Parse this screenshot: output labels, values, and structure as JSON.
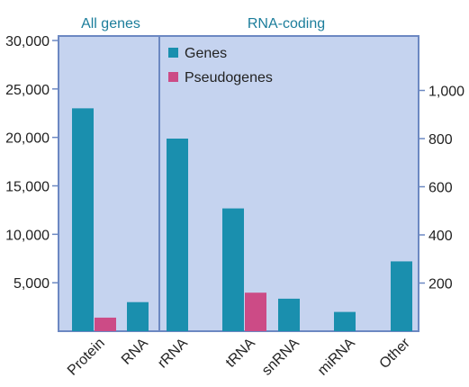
{
  "chart_data": {
    "type": "bar",
    "panel_labels": [
      "All genes",
      "RNA-coding"
    ],
    "left_axis": {
      "ticks": [
        5000,
        10000,
        15000,
        20000,
        25000,
        30000
      ],
      "tick_labels": [
        "5,000",
        "10,000",
        "15,000",
        "20,000",
        "25,000",
        "30,000"
      ],
      "ylim": [
        0,
        30000
      ]
    },
    "right_axis": {
      "ticks": [
        200,
        400,
        600,
        800,
        1000
      ],
      "tick_labels": [
        "200",
        "400",
        "600",
        "800",
        "1,000"
      ],
      "ylim": [
        0,
        1200
      ]
    },
    "legend": {
      "placement": "top-left of RNA-coding panel",
      "entries": [
        "Genes",
        "Pseudogenes"
      ]
    },
    "colors": {
      "Genes": "#1a8fae",
      "Pseudogenes": "#cc4b86",
      "panel_bg": "#c5d3ef",
      "panel_border": "#6c88c2",
      "label_color": "#1b7d9b"
    },
    "categories": [
      "Protein",
      "RNA",
      "rRNA",
      "tRNA",
      "snRNA",
      "miRNA",
      "Other"
    ],
    "series": [
      {
        "name": "Genes",
        "values": [
          23000,
          3000,
          800,
          510,
          135,
          80,
          290
        ]
      },
      {
        "name": "Pseudogenes",
        "values": [
          1400,
          null,
          null,
          160,
          null,
          null,
          null
        ]
      }
    ],
    "axis_for_category": [
      "left",
      "left",
      "right",
      "right",
      "right",
      "right",
      "right"
    ]
  }
}
